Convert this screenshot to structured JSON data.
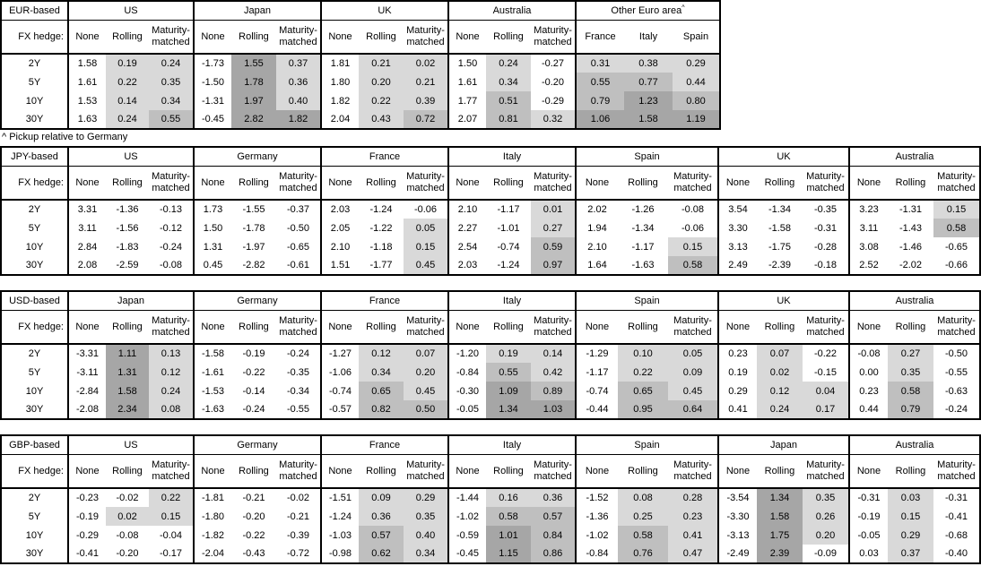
{
  "footnote": "^ Pickup relative to Germany",
  "fx_hedge_label": "FX hedge:",
  "maturities": [
    "2Y",
    "5Y",
    "10Y",
    "30Y"
  ],
  "hedge_columns": [
    "None",
    "Rolling",
    "Maturity-matched"
  ],
  "shading": {
    "light_0_to_0p5": "#d9d9d9",
    "medium_0p5_to_1": "#bfbfbf",
    "dark_above_1": "#a6a6a6",
    "negative": "#ffffff",
    "border": "#000000"
  },
  "tables": [
    {
      "base": "EUR-based",
      "groups": [
        {
          "name": "US",
          "columns": [
            "None",
            "Rolling",
            "Maturity-matched"
          ],
          "shade_all": false,
          "rows": [
            [
              "1.58",
              "0.19",
              "0.24"
            ],
            [
              "1.61",
              "0.22",
              "0.35"
            ],
            [
              "1.53",
              "0.14",
              "0.34"
            ],
            [
              "1.63",
              "0.24",
              "0.55"
            ]
          ]
        },
        {
          "name": "Japan",
          "columns": [
            "None",
            "Rolling",
            "Maturity-matched"
          ],
          "shade_all": false,
          "rows": [
            [
              "-1.73",
              "1.55",
              "0.37"
            ],
            [
              "-1.50",
              "1.78",
              "0.36"
            ],
            [
              "-1.31",
              "1.97",
              "0.40"
            ],
            [
              "-0.45",
              "2.82",
              "1.82"
            ]
          ]
        },
        {
          "name": "UK",
          "columns": [
            "None",
            "Rolling",
            "Maturity-matched"
          ],
          "shade_all": false,
          "rows": [
            [
              "1.81",
              "0.21",
              "0.02"
            ],
            [
              "1.80",
              "0.20",
              "0.21"
            ],
            [
              "1.82",
              "0.22",
              "0.39"
            ],
            [
              "2.04",
              "0.43",
              "0.72"
            ]
          ]
        },
        {
          "name": "Australia",
          "columns": [
            "None",
            "Rolling",
            "Maturity-matched"
          ],
          "shade_all": false,
          "rows": [
            [
              "1.50",
              "0.24",
              "-0.27"
            ],
            [
              "1.61",
              "0.34",
              "-0.20"
            ],
            [
              "1.77",
              "0.51",
              "-0.29"
            ],
            [
              "2.07",
              "0.81",
              "0.32"
            ]
          ]
        },
        {
          "name": "Other Euro area",
          "superscript": "^",
          "columns": [
            "France",
            "Italy",
            "Spain"
          ],
          "shade_all": true,
          "rows": [
            [
              "0.31",
              "0.38",
              "0.29"
            ],
            [
              "0.55",
              "0.77",
              "0.44"
            ],
            [
              "0.79",
              "1.23",
              "0.80"
            ],
            [
              "1.06",
              "1.58",
              "1.19"
            ]
          ]
        }
      ]
    },
    {
      "base": "JPY-based",
      "groups": [
        {
          "name": "US",
          "columns": [
            "None",
            "Rolling",
            "Maturity-matched"
          ],
          "shade_all": false,
          "rows": [
            [
              "3.31",
              "-1.36",
              "-0.13"
            ],
            [
              "3.11",
              "-1.56",
              "-0.12"
            ],
            [
              "2.84",
              "-1.83",
              "-0.24"
            ],
            [
              "2.08",
              "-2.59",
              "-0.08"
            ]
          ]
        },
        {
          "name": "Germany",
          "columns": [
            "None",
            "Rolling",
            "Maturity-matched"
          ],
          "shade_all": false,
          "rows": [
            [
              "1.73",
              "-1.55",
              "-0.37"
            ],
            [
              "1.50",
              "-1.78",
              "-0.50"
            ],
            [
              "1.31",
              "-1.97",
              "-0.65"
            ],
            [
              "0.45",
              "-2.82",
              "-0.61"
            ]
          ]
        },
        {
          "name": "France",
          "columns": [
            "None",
            "Rolling",
            "Maturity-matched"
          ],
          "shade_all": false,
          "rows": [
            [
              "2.03",
              "-1.24",
              "-0.06"
            ],
            [
              "2.05",
              "-1.22",
              "0.05"
            ],
            [
              "2.10",
              "-1.18",
              "0.15"
            ],
            [
              "1.51",
              "-1.77",
              "0.45"
            ]
          ]
        },
        {
          "name": "Italy",
          "columns": [
            "None",
            "Rolling",
            "Maturity-matched"
          ],
          "shade_all": false,
          "rows": [
            [
              "2.10",
              "-1.17",
              "0.01"
            ],
            [
              "2.27",
              "-1.01",
              "0.27"
            ],
            [
              "2.54",
              "-0.74",
              "0.59"
            ],
            [
              "2.03",
              "-1.24",
              "0.97"
            ]
          ]
        },
        {
          "name": "Spain",
          "columns": [
            "None",
            "Rolling",
            "Maturity-matched"
          ],
          "shade_all": false,
          "rows": [
            [
              "2.02",
              "-1.26",
              "-0.08"
            ],
            [
              "1.94",
              "-1.34",
              "-0.06"
            ],
            [
              "2.10",
              "-1.17",
              "0.15"
            ],
            [
              "1.64",
              "-1.63",
              "0.58"
            ]
          ]
        },
        {
          "name": "UK",
          "columns": [
            "None",
            "Rolling",
            "Maturity-matched"
          ],
          "shade_all": false,
          "rows": [
            [
              "3.54",
              "-1.34",
              "-0.35"
            ],
            [
              "3.30",
              "-1.58",
              "-0.31"
            ],
            [
              "3.13",
              "-1.75",
              "-0.28"
            ],
            [
              "2.49",
              "-2.39",
              "-0.18"
            ]
          ]
        },
        {
          "name": "Australia",
          "columns": [
            "None",
            "Rolling",
            "Maturity-matched"
          ],
          "shade_all": false,
          "rows": [
            [
              "3.23",
              "-1.31",
              "0.15"
            ],
            [
              "3.11",
              "-1.43",
              "0.58"
            ],
            [
              "3.08",
              "-1.46",
              "-0.65"
            ],
            [
              "2.52",
              "-2.02",
              "-0.66"
            ]
          ]
        }
      ]
    },
    {
      "base": "USD-based",
      "groups": [
        {
          "name": "Japan",
          "columns": [
            "None",
            "Rolling",
            "Maturity-matched"
          ],
          "shade_all": false,
          "rows": [
            [
              "-3.31",
              "1.11",
              "0.13"
            ],
            [
              "-3.11",
              "1.31",
              "0.12"
            ],
            [
              "-2.84",
              "1.58",
              "0.24"
            ],
            [
              "-2.08",
              "2.34",
              "0.08"
            ]
          ]
        },
        {
          "name": "Germany",
          "columns": [
            "None",
            "Rolling",
            "Maturity-matched"
          ],
          "shade_all": false,
          "rows": [
            [
              "-1.58",
              "-0.19",
              "-0.24"
            ],
            [
              "-1.61",
              "-0.22",
              "-0.35"
            ],
            [
              "-1.53",
              "-0.14",
              "-0.34"
            ],
            [
              "-1.63",
              "-0.24",
              "-0.55"
            ]
          ]
        },
        {
          "name": "France",
          "columns": [
            "None",
            "Rolling",
            "Maturity-matched"
          ],
          "shade_all": false,
          "rows": [
            [
              "-1.27",
              "0.12",
              "0.07"
            ],
            [
              "-1.06",
              "0.34",
              "0.20"
            ],
            [
              "-0.74",
              "0.65",
              "0.45"
            ],
            [
              "-0.57",
              "0.82",
              "0.50"
            ]
          ]
        },
        {
          "name": "Italy",
          "columns": [
            "None",
            "Rolling",
            "Maturity-matched"
          ],
          "shade_all": false,
          "rows": [
            [
              "-1.20",
              "0.19",
              "0.14"
            ],
            [
              "-0.84",
              "0.55",
              "0.42"
            ],
            [
              "-0.30",
              "1.09",
              "0.89"
            ],
            [
              "-0.05",
              "1.34",
              "1.03"
            ]
          ]
        },
        {
          "name": "Spain",
          "columns": [
            "None",
            "Rolling",
            "Maturity-matched"
          ],
          "shade_all": false,
          "rows": [
            [
              "-1.29",
              "0.10",
              "0.05"
            ],
            [
              "-1.17",
              "0.22",
              "0.09"
            ],
            [
              "-0.74",
              "0.65",
              "0.45"
            ],
            [
              "-0.44",
              "0.95",
              "0.64"
            ]
          ]
        },
        {
          "name": "UK",
          "columns": [
            "None",
            "Rolling",
            "Maturity-matched"
          ],
          "shade_all": false,
          "rows": [
            [
              "0.23",
              "0.07",
              "-0.22"
            ],
            [
              "0.19",
              "0.02",
              "-0.15"
            ],
            [
              "0.29",
              "0.12",
              "0.04"
            ],
            [
              "0.41",
              "0.24",
              "0.17"
            ]
          ]
        },
        {
          "name": "Australia",
          "columns": [
            "None",
            "Rolling",
            "Maturity-matched"
          ],
          "shade_all": false,
          "rows": [
            [
              "-0.08",
              "0.27",
              "-0.50"
            ],
            [
              "0.00",
              "0.35",
              "-0.55"
            ],
            [
              "0.23",
              "0.58",
              "-0.63"
            ],
            [
              "0.44",
              "0.79",
              "-0.24"
            ]
          ]
        }
      ]
    },
    {
      "base": "GBP-based",
      "groups": [
        {
          "name": "US",
          "columns": [
            "None",
            "Rolling",
            "Maturity-matched"
          ],
          "shade_all": false,
          "rows": [
            [
              "-0.23",
              "-0.02",
              "0.22"
            ],
            [
              "-0.19",
              "0.02",
              "0.15"
            ],
            [
              "-0.29",
              "-0.08",
              "-0.04"
            ],
            [
              "-0.41",
              "-0.20",
              "-0.17"
            ]
          ]
        },
        {
          "name": "Germany",
          "columns": [
            "None",
            "Rolling",
            "Maturity-matched"
          ],
          "shade_all": false,
          "rows": [
            [
              "-1.81",
              "-0.21",
              "-0.02"
            ],
            [
              "-1.80",
              "-0.20",
              "-0.21"
            ],
            [
              "-1.82",
              "-0.22",
              "-0.39"
            ],
            [
              "-2.04",
              "-0.43",
              "-0.72"
            ]
          ]
        },
        {
          "name": "France",
          "columns": [
            "None",
            "Rolling",
            "Maturity-matched"
          ],
          "shade_all": false,
          "rows": [
            [
              "-1.51",
              "0.09",
              "0.29"
            ],
            [
              "-1.24",
              "0.36",
              "0.35"
            ],
            [
              "-1.03",
              "0.57",
              "0.40"
            ],
            [
              "-0.98",
              "0.62",
              "0.34"
            ]
          ]
        },
        {
          "name": "Italy",
          "columns": [
            "None",
            "Rolling",
            "Maturity-matched"
          ],
          "shade_all": false,
          "rows": [
            [
              "-1.44",
              "0.16",
              "0.36"
            ],
            [
              "-1.02",
              "0.58",
              "0.57"
            ],
            [
              "-0.59",
              "1.01",
              "0.84"
            ],
            [
              "-0.45",
              "1.15",
              "0.86"
            ]
          ]
        },
        {
          "name": "Spain",
          "columns": [
            "None",
            "Rolling",
            "Maturity-matched"
          ],
          "shade_all": false,
          "rows": [
            [
              "-1.52",
              "0.08",
              "0.28"
            ],
            [
              "-1.36",
              "0.25",
              "0.23"
            ],
            [
              "-1.02",
              "0.58",
              "0.41"
            ],
            [
              "-0.84",
              "0.76",
              "0.47"
            ]
          ]
        },
        {
          "name": "Japan",
          "columns": [
            "None",
            "Rolling",
            "Maturity-matched"
          ],
          "shade_all": false,
          "rows": [
            [
              "-3.54",
              "1.34",
              "0.35"
            ],
            [
              "-3.30",
              "1.58",
              "0.26"
            ],
            [
              "-3.13",
              "1.75",
              "0.20"
            ],
            [
              "-2.49",
              "2.39",
              "-0.09"
            ]
          ]
        },
        {
          "name": "Australia",
          "columns": [
            "None",
            "Rolling",
            "Maturity-matched"
          ],
          "shade_all": false,
          "rows": [
            [
              "-0.31",
              "0.03",
              "-0.31"
            ],
            [
              "-0.19",
              "0.15",
              "-0.41"
            ],
            [
              "-0.05",
              "0.29",
              "-0.68"
            ],
            [
              "0.03",
              "0.37",
              "-0.40"
            ]
          ]
        }
      ]
    }
  ]
}
